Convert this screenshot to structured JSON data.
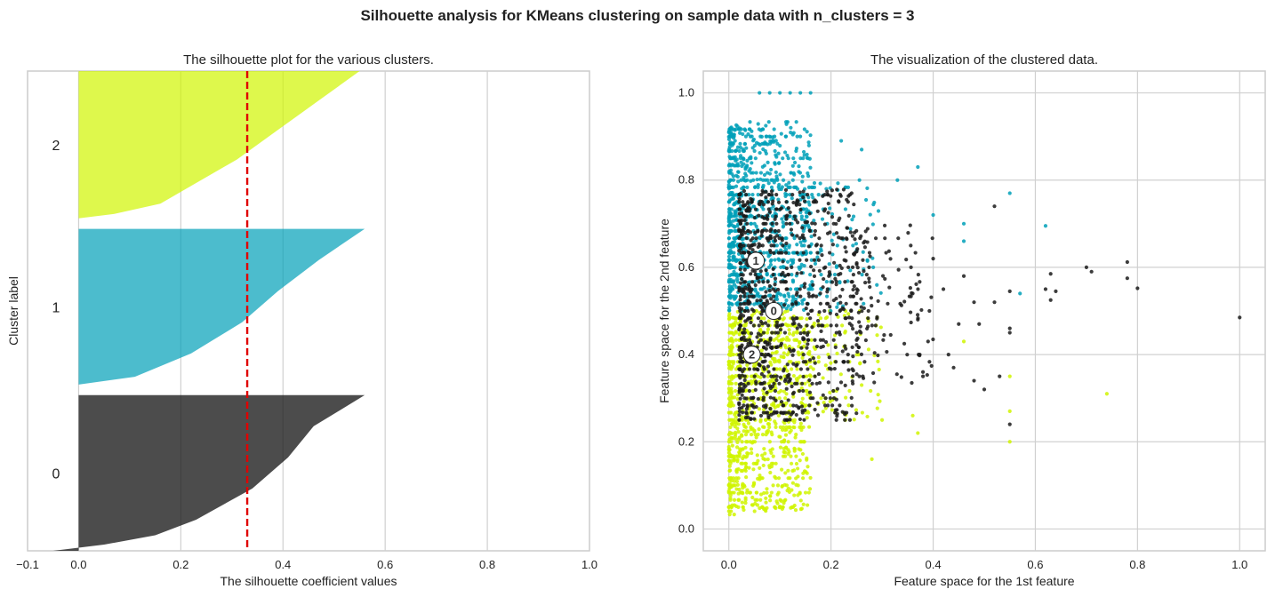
{
  "figure": {
    "suptitle": "Silhouette analysis for KMeans clustering on sample data with n_clusters = 3"
  },
  "colors": {
    "cluster0": "#1a1a1a",
    "cluster1": "#00a0b8",
    "cluster2": "#d0f500",
    "avg_line": "#e00000",
    "grid": "#d0d0d0",
    "frame": "#cccccc"
  },
  "chart_data": [
    {
      "type": "area",
      "name": "silhouette",
      "title": "The silhouette plot for the various clusters.",
      "xlabel": "The silhouette coefficient values",
      "ylabel": "Cluster label",
      "xlim": [
        -0.1,
        1.0
      ],
      "xticks": [
        -0.1,
        0.0,
        0.2,
        0.4,
        0.6,
        0.8,
        1.0
      ],
      "xtick_labels": [
        "−0.1",
        "0.0",
        "0.2",
        "0.4",
        "0.6",
        "0.8",
        "1.0"
      ],
      "average_silhouette": 0.33,
      "grid": true,
      "clusters": [
        {
          "label": "0",
          "size": 0.37,
          "profile": [
            [
              0.0,
              0.56
            ],
            [
              0.2,
              0.46
            ],
            [
              0.4,
              0.41
            ],
            [
              0.6,
              0.34
            ],
            [
              0.8,
              0.23
            ],
            [
              0.9,
              0.15
            ],
            [
              0.96,
              0.05
            ],
            [
              1.0,
              -0.05
            ]
          ]
        },
        {
          "label": "1",
          "size": 0.37,
          "profile": [
            [
              0.0,
              0.56
            ],
            [
              0.2,
              0.47
            ],
            [
              0.4,
              0.39
            ],
            [
              0.6,
              0.32
            ],
            [
              0.8,
              0.22
            ],
            [
              0.95,
              0.11
            ],
            [
              1.0,
              0.0
            ]
          ]
        },
        {
          "label": "2",
          "size": 0.35,
          "profile": [
            [
              0.0,
              0.55
            ],
            [
              0.2,
              0.47
            ],
            [
              0.4,
              0.39
            ],
            [
              0.6,
              0.31
            ],
            [
              0.8,
              0.21
            ],
            [
              0.9,
              0.16
            ],
            [
              0.97,
              0.07
            ],
            [
              1.0,
              0.0
            ]
          ]
        }
      ]
    },
    {
      "type": "scatter",
      "name": "clusters",
      "title": "The visualization of the clustered data.",
      "xlabel": "Feature space for the 1st feature",
      "ylabel": "Feature space for the 2nd feature",
      "xlim": [
        -0.05,
        1.05
      ],
      "ylim": [
        -0.05,
        1.05
      ],
      "xticks": [
        0.0,
        0.2,
        0.4,
        0.6,
        0.8,
        1.0
      ],
      "xtick_labels": [
        "0.0",
        "0.2",
        "0.4",
        "0.6",
        "0.8",
        "1.0"
      ],
      "yticks": [
        0.0,
        0.2,
        0.4,
        0.6,
        0.8,
        1.0
      ],
      "ytick_labels": [
        "0.0",
        "0.2",
        "0.4",
        "0.6",
        "0.8",
        "1.0"
      ],
      "grid": true,
      "centers": [
        {
          "label": "0",
          "x": 0.088,
          "y": 0.5
        },
        {
          "label": "1",
          "x": 0.053,
          "y": 0.615
        },
        {
          "label": "2",
          "x": 0.045,
          "y": 0.4
        }
      ],
      "points": {
        "cluster0": [
          [
            1.0,
            0.485
          ],
          [
            0.8,
            0.552
          ],
          [
            0.78,
            0.575
          ],
          [
            0.78,
            0.612
          ],
          [
            0.7,
            0.6
          ],
          [
            0.71,
            0.59
          ],
          [
            0.63,
            0.585
          ],
          [
            0.62,
            0.55
          ],
          [
            0.63,
            0.525
          ],
          [
            0.64,
            0.545
          ],
          [
            0.55,
            0.545
          ],
          [
            0.55,
            0.45
          ],
          [
            0.55,
            0.46
          ],
          [
            0.52,
            0.74
          ],
          [
            0.52,
            0.52
          ],
          [
            0.5,
            0.32
          ],
          [
            0.48,
            0.34
          ],
          [
            0.44,
            0.37
          ],
          [
            0.4,
            0.62
          ],
          [
            0.42,
            0.55
          ],
          [
            0.36,
            0.54
          ],
          [
            0.55,
            0.24
          ],
          [
            0.53,
            0.35
          ],
          [
            0.46,
            0.58
          ],
          [
            0.48,
            0.52
          ],
          [
            0.49,
            0.47
          ],
          [
            0.45,
            0.47
          ],
          [
            0.43,
            0.4
          ],
          [
            0.39,
            0.43
          ],
          [
            0.37,
            0.48
          ],
          [
            0.38,
            0.36
          ]
        ],
        "cluster1": [
          [
            0.06,
            1.0
          ],
          [
            0.08,
            1.0
          ],
          [
            0.1,
            1.0
          ],
          [
            0.12,
            1.0
          ],
          [
            0.14,
            1.0
          ],
          [
            0.16,
            1.0
          ],
          [
            0.55,
            0.77
          ],
          [
            0.46,
            0.7
          ],
          [
            0.62,
            0.695
          ],
          [
            0.57,
            0.54
          ],
          [
            0.46,
            0.66
          ],
          [
            0.37,
            0.83
          ],
          [
            0.26,
            0.87
          ],
          [
            0.4,
            0.72
          ],
          [
            0.33,
            0.8
          ],
          [
            0.22,
            0.89
          ]
        ],
        "cluster2": [
          [
            0.74,
            0.31
          ],
          [
            0.55,
            0.2
          ],
          [
            0.55,
            0.27
          ],
          [
            0.55,
            0.35
          ],
          [
            0.46,
            0.43
          ],
          [
            0.37,
            0.22
          ],
          [
            0.36,
            0.26
          ],
          [
            0.28,
            0.16
          ],
          [
            0.3,
            0.25
          ],
          [
            0.26,
            0.33
          ]
        ]
      },
      "dense_regions": [
        {
          "cluster": "cluster1",
          "x": [
            0.0,
            0.16
          ],
          "y": [
            0.5,
            0.93
          ],
          "n": 900
        },
        {
          "cluster": "cluster1",
          "x": [
            0.16,
            0.3
          ],
          "y": [
            0.5,
            0.8
          ],
          "n": 90
        },
        {
          "cluster": "cluster2",
          "x": [
            0.0,
            0.16
          ],
          "y": [
            0.04,
            0.5
          ],
          "n": 900
        },
        {
          "cluster": "cluster2",
          "x": [
            0.16,
            0.3
          ],
          "y": [
            0.25,
            0.5
          ],
          "n": 90
        },
        {
          "cluster": "cluster0",
          "x": [
            0.02,
            0.25
          ],
          "y": [
            0.25,
            0.78
          ],
          "n": 900
        },
        {
          "cluster": "cluster0",
          "x": [
            0.25,
            0.4
          ],
          "y": [
            0.33,
            0.7
          ],
          "n": 120
        }
      ]
    }
  ]
}
